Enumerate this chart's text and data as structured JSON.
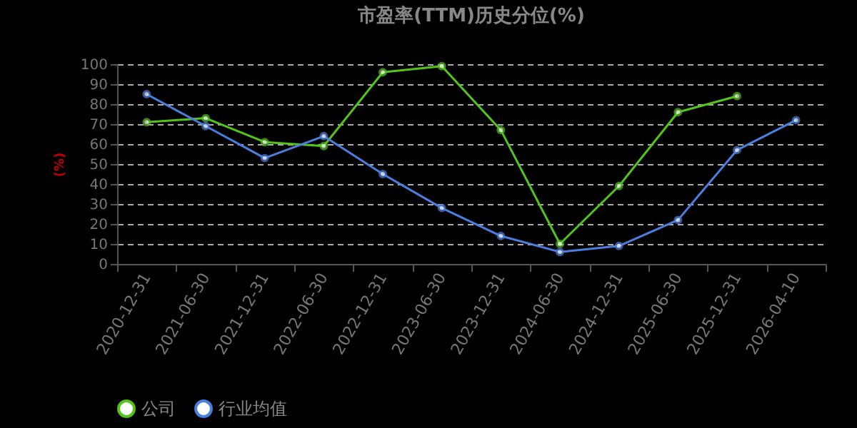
{
  "chart_data": {
    "type": "line",
    "title": "市盈率(TTM)历史分位(%)",
    "ylabel": "(%)",
    "categories": [
      "2020-12-31",
      "2021-06-30",
      "2021-12-31",
      "2022-06-30",
      "2022-12-31",
      "2023-06-30",
      "2023-12-31",
      "2024-06-30",
      "2024-12-31",
      "2025-06-30",
      "2025-12-31",
      "2026-04-10"
    ],
    "series": [
      {
        "name": "公司",
        "color": "#52c41a",
        "values": [
          71,
          73,
          61,
          59,
          96,
          99,
          67,
          10,
          39,
          76,
          84,
          null
        ]
      },
      {
        "name": "行业均值",
        "color": "#4a7fe0",
        "values": [
          85,
          69,
          53,
          64,
          45,
          28,
          14,
          6,
          9,
          22,
          57,
          72
        ]
      }
    ],
    "ylim": [
      0,
      100
    ],
    "yticks": [
      0,
      10,
      20,
      30,
      40,
      50,
      60,
      70,
      80,
      90,
      100
    ],
    "grid": "y",
    "legend": "bottom",
    "marker": "circle",
    "line_style": "solid"
  }
}
